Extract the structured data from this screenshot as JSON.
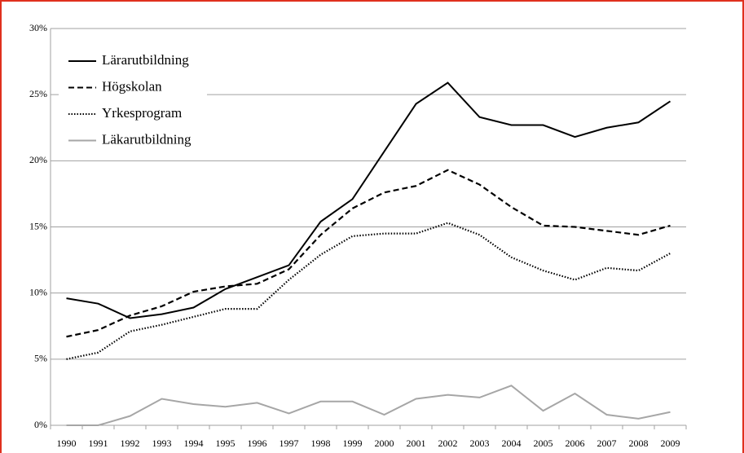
{
  "chart_data": {
    "type": "line",
    "categories": [
      "1990",
      "1991",
      "1992",
      "1993",
      "1994",
      "1995",
      "1996",
      "1997",
      "1998",
      "1999",
      "2000",
      "2001",
      "2002",
      "2003",
      "2004",
      "2005",
      "2006",
      "2007",
      "2008",
      "2009"
    ],
    "series": [
      {
        "name": "Lärarutbildning",
        "color": "#000000",
        "dash": "solid",
        "values": [
          9.6,
          9.2,
          8.1,
          8.4,
          8.9,
          10.3,
          11.2,
          12.1,
          15.4,
          17.1,
          20.7,
          24.3,
          25.9,
          23.3,
          22.7,
          22.7,
          21.8,
          22.5,
          22.9,
          24.5
        ]
      },
      {
        "name": "Högskolan",
        "color": "#000000",
        "dash": "dashed",
        "values": [
          6.7,
          7.2,
          8.3,
          9.0,
          10.1,
          10.5,
          10.7,
          11.8,
          14.4,
          16.4,
          17.6,
          18.1,
          19.3,
          18.2,
          16.5,
          15.1,
          15.0,
          14.7,
          14.4,
          15.1
        ]
      },
      {
        "name": "Yrkesprogram",
        "color": "#000000",
        "dash": "dotted",
        "values": [
          5.0,
          5.5,
          7.1,
          7.6,
          8.2,
          8.8,
          8.8,
          11.0,
          12.9,
          14.3,
          14.5,
          14.5,
          15.3,
          14.4,
          12.7,
          11.7,
          11.0,
          11.9,
          11.7,
          13.0
        ]
      },
      {
        "name": "Läkarutbildning",
        "color": "#a6a6a6",
        "dash": "solid",
        "values": [
          0,
          0,
          0.7,
          2.0,
          1.6,
          1.4,
          1.7,
          0.9,
          1.8,
          1.8,
          0.8,
          2.0,
          2.3,
          2.1,
          3.0,
          1.1,
          2.4,
          0.8,
          0.5,
          1.0
        ]
      }
    ],
    "ylim": [
      0,
      30
    ],
    "yticks": [
      {
        "value": 0,
        "label": "0%"
      },
      {
        "value": 5,
        "label": "5%"
      },
      {
        "value": 10,
        "label": "10%"
      },
      {
        "value": 15,
        "label": "15%"
      },
      {
        "value": 20,
        "label": "20%"
      },
      {
        "value": 25,
        "label": "25%"
      },
      {
        "value": 30,
        "label": "30%"
      }
    ],
    "grid": true,
    "legend": "top-left"
  }
}
